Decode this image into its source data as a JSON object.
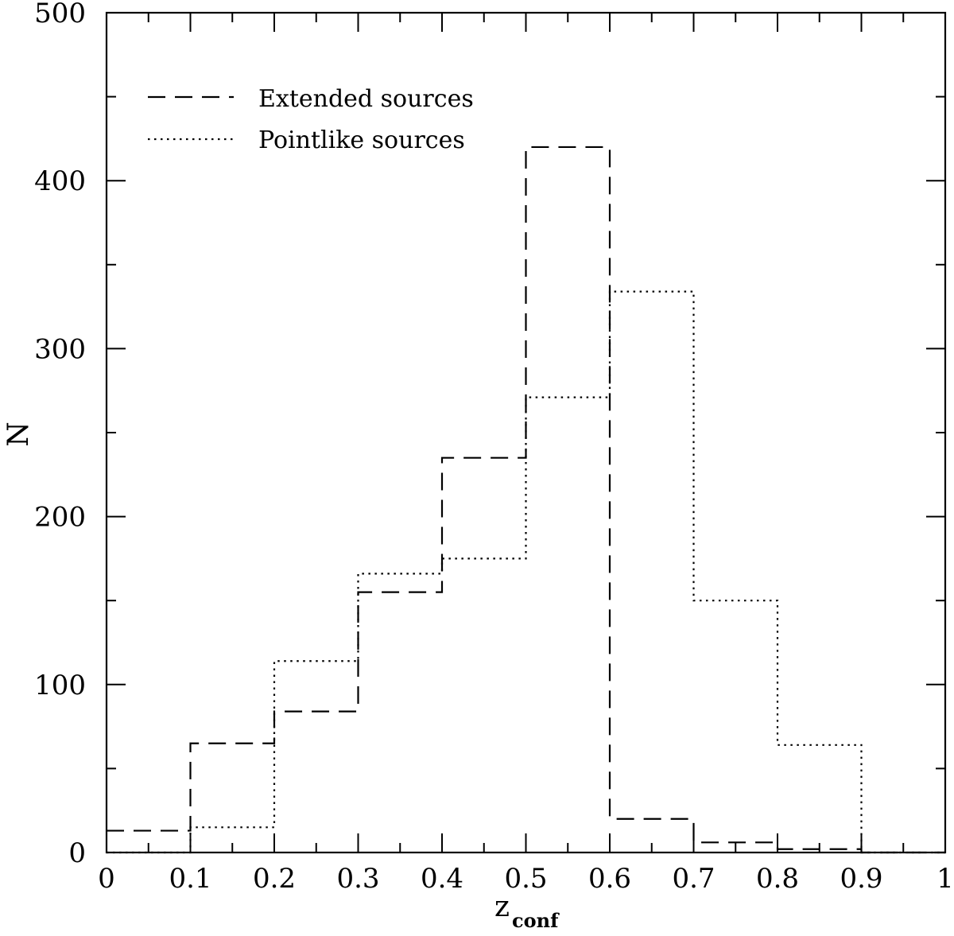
{
  "chart_data": {
    "type": "histogram",
    "title": "",
    "xlabel": "z",
    "xlabel_subscript": "conf",
    "ylabel": "N",
    "xlim": [
      0,
      1
    ],
    "ylim": [
      0,
      500
    ],
    "bin_edges": [
      0,
      0.1,
      0.2,
      0.3,
      0.4,
      0.5,
      0.6,
      0.7,
      0.8,
      0.9,
      1.0
    ],
    "x_ticks_major": [
      0,
      0.1,
      0.2,
      0.3,
      0.4,
      0.5,
      0.6,
      0.7,
      0.8,
      0.9,
      1
    ],
    "x_tick_labels": [
      "0",
      "0.1",
      "0.2",
      "0.3",
      "0.4",
      "0.5",
      "0.6",
      "0.7",
      "0.8",
      "0.9",
      "1"
    ],
    "y_ticks_major": [
      0,
      100,
      200,
      300,
      400,
      500
    ],
    "y_tick_labels": [
      "0",
      "100",
      "200",
      "300",
      "400",
      "500"
    ],
    "grid": false,
    "legend_position": "top-left",
    "series": [
      {
        "name": "Extended sources",
        "line_style": "dashed",
        "values": [
          13,
          65,
          84,
          155,
          235,
          420,
          20,
          6,
          2,
          0
        ]
      },
      {
        "name": "Pointlike sources",
        "line_style": "dotted",
        "values": [
          0,
          15,
          114,
          166,
          175,
          271,
          334,
          150,
          64,
          0
        ]
      }
    ]
  }
}
